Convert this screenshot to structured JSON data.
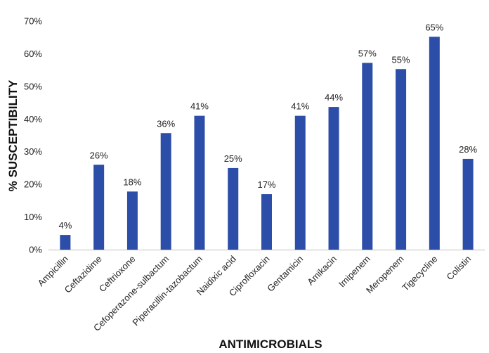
{
  "chart_data": {
    "type": "bar",
    "title": "",
    "xlabel": "ANTIMICROBIALS",
    "ylabel": "% SUSCEPTIBILITY",
    "ylim": [
      0,
      70
    ],
    "yticks": [
      0,
      10,
      20,
      30,
      40,
      50,
      60,
      70
    ],
    "ytick_labels": [
      "0%",
      "10%",
      "20%",
      "30%",
      "40%",
      "50%",
      "60%",
      "70%"
    ],
    "grid": false,
    "legend": "none",
    "bar_color": "#2c4ea8",
    "categories": [
      "Ampicillin",
      "Ceftazidime",
      "Ceftrioxone",
      "Cefoperazone-sulbactum",
      "Piperacillin-tazobactum",
      "Naidixic acid",
      "Ciprofloxacin",
      "Gentamicin",
      "Amikacin",
      "Imipenem",
      "Meropenem",
      "Tigecycline",
      "Colistin"
    ],
    "values": [
      4.5,
      26,
      17.8,
      35.7,
      41,
      25,
      17,
      41,
      43.7,
      57.2,
      55.3,
      65.2,
      27.8
    ],
    "data_labels": [
      "4%",
      "26%",
      "18%",
      "36%",
      "41%",
      "25%",
      "17%",
      "41%",
      "44%",
      "57%",
      "55%",
      "65%",
      "28%"
    ]
  }
}
